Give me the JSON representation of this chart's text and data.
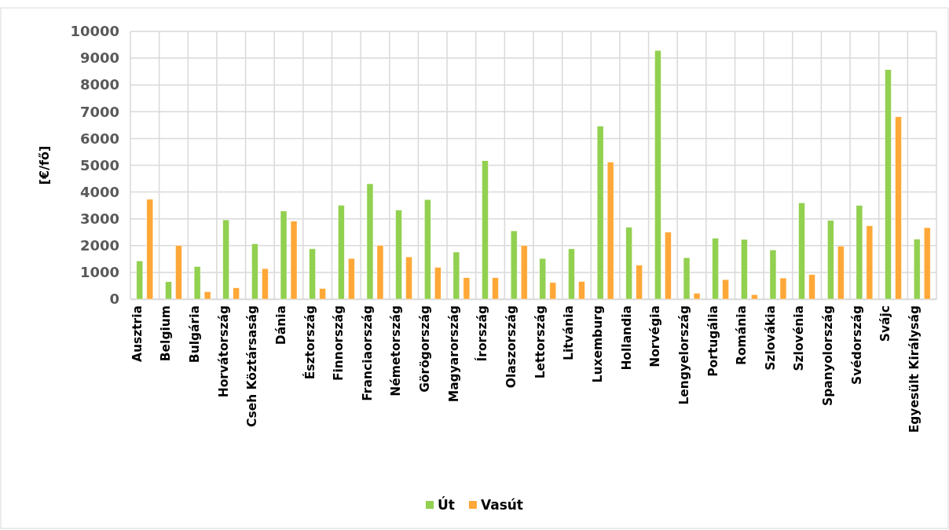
{
  "chart_data": {
    "type": "bar",
    "ylabel": "[€/fő]",
    "categories": [
      "Ausztria",
      "Belgium",
      "Bulgária",
      "Horvátország",
      "Cseh Köztársaság",
      "Dánia",
      "Észtország",
      "Finnország",
      "Franciaország",
      "Németország",
      "Görögország",
      "Magyarország",
      "Írország",
      "Olaszország",
      "Lettország",
      "Litvánia",
      "Luxemburg",
      "Hollandia",
      "Norvégia",
      "Lengyelország",
      "Portugália",
      "Románia",
      "Szlovákia",
      "Szlovénia",
      "Spanyolország",
      "Svédország",
      "Svájc",
      "Egyesült Királyság"
    ],
    "series": [
      {
        "name": "Út",
        "color": "#92d050",
        "values": [
          1430,
          650,
          1220,
          2960,
          2070,
          3290,
          1880,
          3510,
          4310,
          3330,
          3720,
          1760,
          5170,
          2550,
          1520,
          1880,
          6460,
          2690,
          9290,
          1550,
          2280,
          2230,
          1840,
          3600,
          2940,
          3500,
          8570,
          2240
        ]
      },
      {
        "name": "Vasút",
        "color": "#ffa838",
        "values": [
          3730,
          2000,
          280,
          420,
          1140,
          2910,
          400,
          1520,
          2010,
          1580,
          1190,
          800,
          800,
          2000,
          620,
          660,
          5120,
          1270,
          2500,
          220,
          730,
          170,
          790,
          920,
          1980,
          2740,
          6810,
          2670
        ]
      }
    ],
    "ylim": [
      0,
      10000
    ],
    "yticks": [
      0,
      1000,
      2000,
      3000,
      4000,
      5000,
      6000,
      7000,
      8000,
      9000,
      10000
    ],
    "grid": true,
    "legend": "bottom"
  }
}
